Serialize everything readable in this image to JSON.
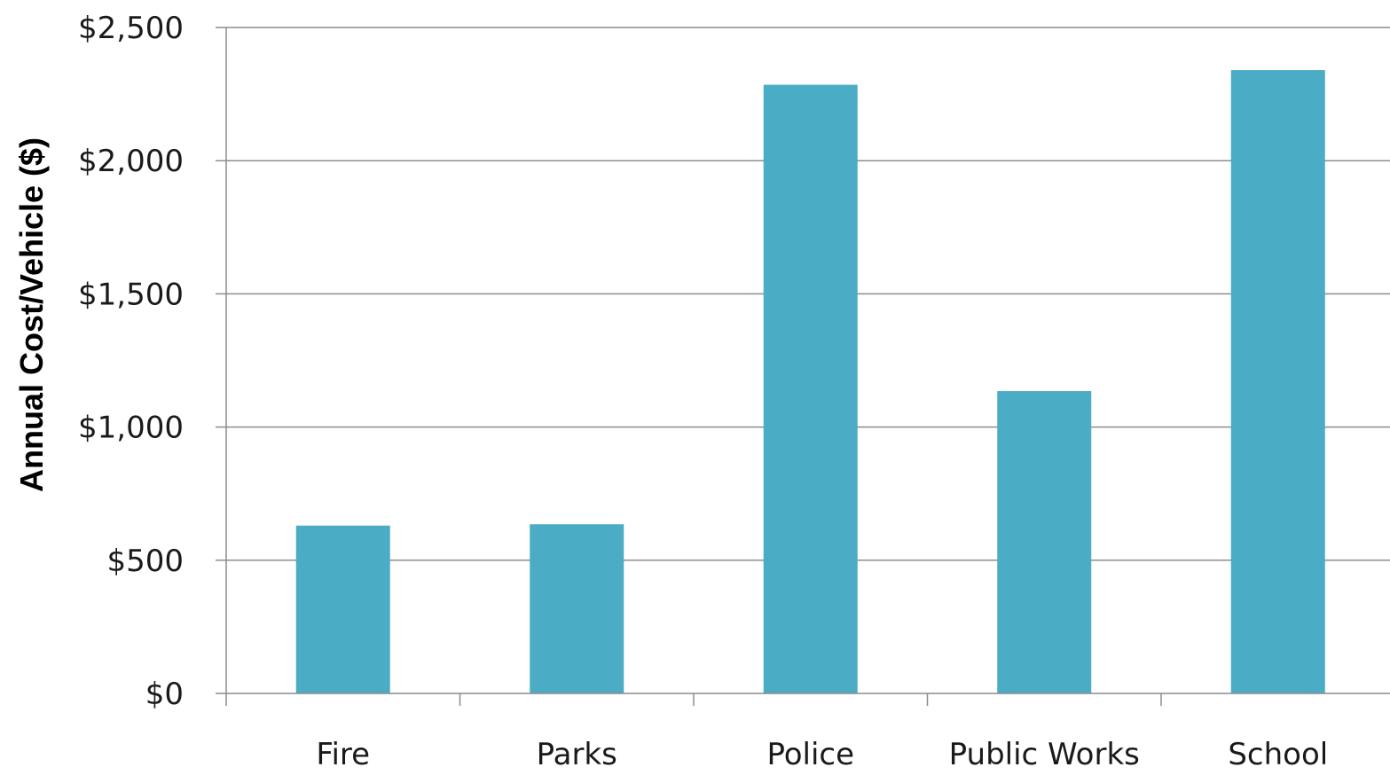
{
  "chart_data": {
    "type": "bar",
    "title": "",
    "xlabel": "",
    "ylabel": "Annual Cost/Vehicle ($)",
    "categories": [
      "Fire",
      "Parks",
      "Police",
      "Public Works",
      "School"
    ],
    "values": [
      630,
      635,
      2285,
      1135,
      2340
    ],
    "ylim": [
      0,
      2500
    ],
    "y_ticks": [
      0,
      500,
      1000,
      1500,
      2000,
      2500
    ],
    "y_tick_labels": [
      "$0",
      "$500",
      "$1,000",
      "$1,500",
      "$2,000",
      "$2,500"
    ],
    "grid": true,
    "legend": "none",
    "colors": {
      "bar": "#4BACC6",
      "grid": "#8c8c8c",
      "axis": "#8c8c8c"
    }
  }
}
